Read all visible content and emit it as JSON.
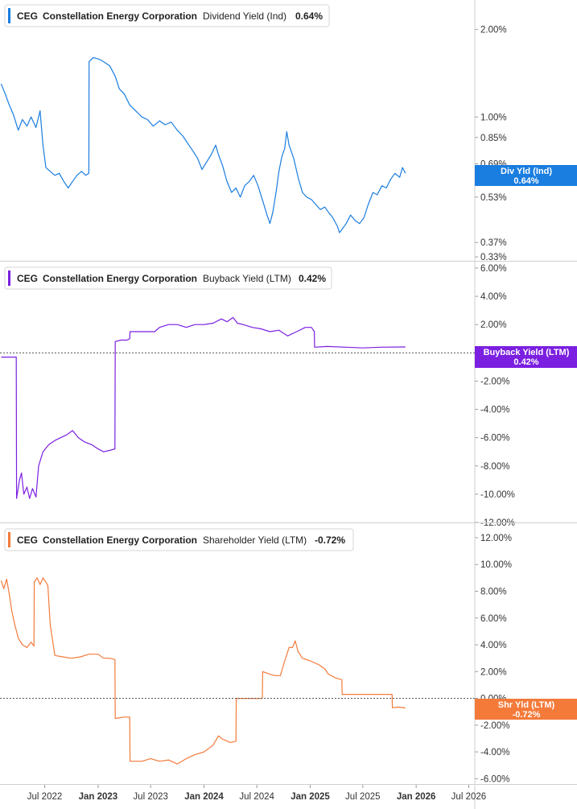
{
  "chart_data": [
    {
      "type": "line",
      "ticker": "CEG",
      "company": "Constellation Energy Corporation",
      "metric": "Dividend Yield (Ind)",
      "current_value": "0.64%",
      "tag_label": "Div Yld (Ind)",
      "tag_value": "0.64%",
      "color": "#1a7de0",
      "scale": "log",
      "ylim": [
        0.32,
        2.4
      ],
      "yticks": [
        {
          "v": 2.0,
          "label": "2.00%"
        },
        {
          "v": 1.0,
          "label": "1.00%"
        },
        {
          "v": 0.85,
          "label": "0.85%"
        },
        {
          "v": 0.69,
          "label": "0.69%"
        },
        {
          "v": 0.53,
          "label": "0.53%"
        },
        {
          "v": 0.37,
          "label": "0.37%"
        },
        {
          "v": 0.33,
          "label": "0.33%"
        }
      ],
      "points": [
        [
          "2022-02-01",
          1.3
        ],
        [
          "2022-02-15",
          1.2
        ],
        [
          "2022-03-01",
          1.1
        ],
        [
          "2022-03-15",
          1.02
        ],
        [
          "2022-04-01",
          0.9
        ],
        [
          "2022-04-15",
          0.98
        ],
        [
          "2022-05-01",
          0.93
        ],
        [
          "2022-05-15",
          1.0
        ],
        [
          "2022-06-01",
          0.92
        ],
        [
          "2022-06-15",
          1.05
        ],
        [
          "2022-06-25",
          0.8
        ],
        [
          "2022-07-05",
          0.67
        ],
        [
          "2022-07-20",
          0.65
        ],
        [
          "2022-08-05",
          0.63
        ],
        [
          "2022-08-20",
          0.64
        ],
        [
          "2022-09-05",
          0.6
        ],
        [
          "2022-09-20",
          0.57
        ],
        [
          "2022-10-05",
          0.6
        ],
        [
          "2022-10-20",
          0.63
        ],
        [
          "2022-11-05",
          0.65
        ],
        [
          "2022-11-20",
          0.63
        ],
        [
          "2022-11-30",
          0.64
        ],
        [
          "2022-12-01",
          1.55
        ],
        [
          "2022-12-15",
          1.6
        ],
        [
          "2023-01-05",
          1.58
        ],
        [
          "2023-01-20",
          1.55
        ],
        [
          "2023-02-10",
          1.5
        ],
        [
          "2023-03-01",
          1.38
        ],
        [
          "2023-03-15",
          1.25
        ],
        [
          "2023-04-01",
          1.2
        ],
        [
          "2023-04-20",
          1.1
        ],
        [
          "2023-05-10",
          1.05
        ],
        [
          "2023-06-01",
          1.0
        ],
        [
          "2023-06-20",
          0.98
        ],
        [
          "2023-07-10",
          0.93
        ],
        [
          "2023-08-01",
          0.97
        ],
        [
          "2023-08-20",
          0.94
        ],
        [
          "2023-09-10",
          0.96
        ],
        [
          "2023-10-01",
          0.9
        ],
        [
          "2023-10-20",
          0.86
        ],
        [
          "2023-11-10",
          0.8
        ],
        [
          "2023-11-25",
          0.76
        ],
        [
          "2023-12-10",
          0.72
        ],
        [
          "2023-12-25",
          0.66
        ],
        [
          "2024-01-10",
          0.7
        ],
        [
          "2024-01-25",
          0.74
        ],
        [
          "2024-02-10",
          0.8
        ],
        [
          "2024-02-20",
          0.74
        ],
        [
          "2024-03-05",
          0.68
        ],
        [
          "2024-03-20",
          0.6
        ],
        [
          "2024-04-05",
          0.55
        ],
        [
          "2024-04-20",
          0.57
        ],
        [
          "2024-05-05",
          0.53
        ],
        [
          "2024-05-20",
          0.58
        ],
        [
          "2024-06-05",
          0.6
        ],
        [
          "2024-06-20",
          0.63
        ],
        [
          "2024-07-05",
          0.58
        ],
        [
          "2024-07-20",
          0.52
        ],
        [
          "2024-08-05",
          0.46
        ],
        [
          "2024-08-15",
          0.43
        ],
        [
          "2024-08-25",
          0.47
        ],
        [
          "2024-09-05",
          0.55
        ],
        [
          "2024-09-15",
          0.65
        ],
        [
          "2024-09-25",
          0.73
        ],
        [
          "2024-10-05",
          0.78
        ],
        [
          "2024-10-12",
          0.89
        ],
        [
          "2024-10-20",
          0.8
        ],
        [
          "2024-11-05",
          0.72
        ],
        [
          "2024-11-20",
          0.62
        ],
        [
          "2024-12-05",
          0.55
        ],
        [
          "2024-12-20",
          0.53
        ],
        [
          "2025-01-05",
          0.52
        ],
        [
          "2025-01-20",
          0.5
        ],
        [
          "2025-02-05",
          0.48
        ],
        [
          "2025-02-20",
          0.49
        ],
        [
          "2025-03-05",
          0.47
        ],
        [
          "2025-03-20",
          0.45
        ],
        [
          "2025-04-05",
          0.42
        ],
        [
          "2025-04-12",
          0.4
        ],
        [
          "2025-04-20",
          0.41
        ],
        [
          "2025-05-05",
          0.43
        ],
        [
          "2025-05-20",
          0.46
        ],
        [
          "2025-06-05",
          0.44
        ],
        [
          "2025-06-20",
          0.43
        ],
        [
          "2025-07-05",
          0.45
        ],
        [
          "2025-07-20",
          0.5
        ],
        [
          "2025-08-05",
          0.55
        ],
        [
          "2025-08-20",
          0.54
        ],
        [
          "2025-09-05",
          0.58
        ],
        [
          "2025-09-20",
          0.57
        ],
        [
          "2025-10-05",
          0.61
        ],
        [
          "2025-10-20",
          0.64
        ],
        [
          "2025-11-05",
          0.62
        ],
        [
          "2025-11-15",
          0.67
        ],
        [
          "2025-11-25",
          0.64
        ]
      ]
    },
    {
      "type": "line",
      "ticker": "CEG",
      "company": "Constellation Energy Corporation",
      "metric": "Buyback Yield (LTM)",
      "current_value": "0.42%",
      "tag_label": "Buyback Yield (LTM)",
      "tag_value": "0.42%",
      "color": "#7b1fe0",
      "scale": "linear",
      "ylim": [
        -12.0,
        6.0
      ],
      "zero_line": true,
      "yticks": [
        {
          "v": 6,
          "label": "6.00%"
        },
        {
          "v": 4,
          "label": "4.00%"
        },
        {
          "v": 2,
          "label": "2.00%"
        },
        {
          "v": 0,
          "label": "0.00%"
        },
        {
          "v": -2,
          "label": "-2.00%"
        },
        {
          "v": -4,
          "label": "-4.00%"
        },
        {
          "v": -6,
          "label": "-6.00%"
        },
        {
          "v": -8,
          "label": "-8.00%"
        },
        {
          "v": -10,
          "label": "-10.00%"
        },
        {
          "v": -12,
          "label": "-12.00%"
        }
      ],
      "points": [
        [
          "2022-02-01",
          -0.3
        ],
        [
          "2022-03-25",
          -0.3
        ],
        [
          "2022-03-26",
          -10.3
        ],
        [
          "2022-04-05",
          -9.0
        ],
        [
          "2022-04-12",
          -8.5
        ],
        [
          "2022-04-20",
          -10.0
        ],
        [
          "2022-05-01",
          -9.5
        ],
        [
          "2022-05-10",
          -10.3
        ],
        [
          "2022-05-20",
          -9.6
        ],
        [
          "2022-06-01",
          -10.2
        ],
        [
          "2022-06-10",
          -8.0
        ],
        [
          "2022-06-25",
          -7.0
        ],
        [
          "2022-07-15",
          -6.5
        ],
        [
          "2022-08-05",
          -6.2
        ],
        [
          "2022-08-25",
          -6.0
        ],
        [
          "2022-09-15",
          -5.8
        ],
        [
          "2022-10-05",
          -5.5
        ],
        [
          "2022-10-25",
          -6.0
        ],
        [
          "2022-11-15",
          -6.3
        ],
        [
          "2022-12-10",
          -6.5
        ],
        [
          "2023-01-01",
          -6.8
        ],
        [
          "2023-01-20",
          -7.0
        ],
        [
          "2023-02-10",
          -6.9
        ],
        [
          "2023-02-28",
          -6.8
        ],
        [
          "2023-03-01",
          0.8
        ],
        [
          "2023-03-20",
          0.9
        ],
        [
          "2023-04-10",
          0.9
        ],
        [
          "2023-04-20",
          1.0
        ],
        [
          "2023-04-21",
          1.5
        ],
        [
          "2023-06-01",
          1.5
        ],
        [
          "2023-07-15",
          1.5
        ],
        [
          "2023-08-01",
          1.8
        ],
        [
          "2023-09-01",
          2.0
        ],
        [
          "2023-10-01",
          2.0
        ],
        [
          "2023-11-01",
          1.8
        ],
        [
          "2023-12-01",
          2.0
        ],
        [
          "2024-01-01",
          2.0
        ],
        [
          "2024-02-01",
          2.1
        ],
        [
          "2024-03-01",
          2.4
        ],
        [
          "2024-03-20",
          2.2
        ],
        [
          "2024-04-10",
          2.5
        ],
        [
          "2024-04-25",
          2.1
        ],
        [
          "2024-05-15",
          2.0
        ],
        [
          "2024-06-15",
          1.8
        ],
        [
          "2024-07-15",
          1.7
        ],
        [
          "2024-08-15",
          1.5
        ],
        [
          "2024-09-15",
          1.6
        ],
        [
          "2024-10-15",
          1.2
        ],
        [
          "2024-11-15",
          1.5
        ],
        [
          "2024-12-15",
          1.8
        ],
        [
          "2025-01-05",
          1.8
        ],
        [
          "2025-01-15",
          1.5
        ],
        [
          "2025-01-16",
          0.4
        ],
        [
          "2025-03-01",
          0.45
        ],
        [
          "2025-05-01",
          0.4
        ],
        [
          "2025-07-01",
          0.35
        ],
        [
          "2025-09-01",
          0.4
        ],
        [
          "2025-11-25",
          0.42
        ]
      ]
    },
    {
      "type": "line",
      "ticker": "CEG",
      "company": "Constellation Energy Corporation",
      "metric": "Shareholder Yield (LTM)",
      "current_value": "-0.72%",
      "tag_label": "Shr Yld (LTM)",
      "tag_value": "-0.72%",
      "color": "#f47a3a",
      "scale": "linear",
      "ylim": [
        -6.4,
        12.6
      ],
      "zero_line": true,
      "yticks": [
        {
          "v": 12,
          "label": "12.00%"
        },
        {
          "v": 10,
          "label": "10.00%"
        },
        {
          "v": 8,
          "label": "8.00%"
        },
        {
          "v": 6,
          "label": "6.00%"
        },
        {
          "v": 4,
          "label": "4.00%"
        },
        {
          "v": 2,
          "label": "2.00%"
        },
        {
          "v": 0,
          "label": "0.00%"
        },
        {
          "v": -2,
          "label": "-2.00%"
        },
        {
          "v": -4,
          "label": "-4.00%"
        },
        {
          "v": -6,
          "label": "-6.00%"
        }
      ],
      "points": [
        [
          "2022-02-01",
          8.8
        ],
        [
          "2022-02-10",
          8.2
        ],
        [
          "2022-02-20",
          8.9
        ],
        [
          "2022-03-01",
          7.8
        ],
        [
          "2022-03-10",
          6.5
        ],
        [
          "2022-03-20",
          5.5
        ],
        [
          "2022-04-01",
          4.5
        ],
        [
          "2022-04-15",
          4.0
        ],
        [
          "2022-05-01",
          3.8
        ],
        [
          "2022-05-15",
          4.2
        ],
        [
          "2022-05-25",
          3.9
        ],
        [
          "2022-05-26",
          8.7
        ],
        [
          "2022-06-05",
          9.0
        ],
        [
          "2022-06-15",
          8.5
        ],
        [
          "2022-06-25",
          9.0
        ],
        [
          "2022-07-05",
          8.7
        ],
        [
          "2022-07-12",
          8.4
        ],
        [
          "2022-07-20",
          5.5
        ],
        [
          "2022-08-05",
          3.2
        ],
        [
          "2022-09-01",
          3.1
        ],
        [
          "2022-10-01",
          3.0
        ],
        [
          "2022-11-01",
          3.1
        ],
        [
          "2022-12-01",
          3.3
        ],
        [
          "2023-01-01",
          3.3
        ],
        [
          "2023-01-20",
          3.0
        ],
        [
          "2023-02-10",
          3.0
        ],
        [
          "2023-02-28",
          2.9
        ],
        [
          "2023-03-01",
          -1.5
        ],
        [
          "2023-04-01",
          -1.4
        ],
        [
          "2023-04-20",
          -1.4
        ],
        [
          "2023-04-21",
          -4.7
        ],
        [
          "2023-06-01",
          -4.7
        ],
        [
          "2023-07-01",
          -4.5
        ],
        [
          "2023-08-01",
          -4.7
        ],
        [
          "2023-09-01",
          -4.6
        ],
        [
          "2023-10-01",
          -4.9
        ],
        [
          "2023-11-01",
          -4.5
        ],
        [
          "2023-12-01",
          -4.2
        ],
        [
          "2024-01-01",
          -4.0
        ],
        [
          "2024-02-01",
          -3.5
        ],
        [
          "2024-02-20",
          -2.8
        ],
        [
          "2024-03-01",
          -3.0
        ],
        [
          "2024-04-01",
          -3.3
        ],
        [
          "2024-04-20",
          -3.2
        ],
        [
          "2024-04-21",
          0.0
        ],
        [
          "2024-06-01",
          0.0
        ],
        [
          "2024-07-01",
          0.0
        ],
        [
          "2024-07-20",
          0.0
        ],
        [
          "2024-07-21",
          2.0
        ],
        [
          "2024-08-15",
          1.8
        ],
        [
          "2024-09-01",
          1.7
        ],
        [
          "2024-09-20",
          1.7
        ],
        [
          "2024-10-01",
          2.5
        ],
        [
          "2024-10-20",
          3.8
        ],
        [
          "2024-11-01",
          3.8
        ],
        [
          "2024-11-10",
          4.3
        ],
        [
          "2024-11-20",
          3.5
        ],
        [
          "2024-12-05",
          3.0
        ],
        [
          "2025-01-01",
          2.8
        ],
        [
          "2025-02-01",
          2.5
        ],
        [
          "2025-02-20",
          2.2
        ],
        [
          "2025-03-05",
          1.8
        ],
        [
          "2025-04-01",
          1.5
        ],
        [
          "2025-04-20",
          1.4
        ],
        [
          "2025-04-21",
          0.3
        ],
        [
          "2025-06-01",
          0.3
        ],
        [
          "2025-08-01",
          0.3
        ],
        [
          "2025-10-01",
          0.3
        ],
        [
          "2025-10-10",
          0.3
        ],
        [
          "2025-10-11",
          -0.7
        ],
        [
          "2025-11-01",
          -0.65
        ],
        [
          "2025-11-25",
          -0.72
        ]
      ]
    }
  ],
  "x_axis": {
    "start": "2022-01-28",
    "end": "2026-07-22",
    "ticks": [
      {
        "date": "2022-07-01",
        "label": "Jul 2022",
        "bold": false
      },
      {
        "date": "2023-01-01",
        "label": "Jan 2023",
        "bold": true
      },
      {
        "date": "2023-07-01",
        "label": "Jul 2023",
        "bold": false
      },
      {
        "date": "2024-01-01",
        "label": "Jan 2024",
        "bold": true
      },
      {
        "date": "2024-07-01",
        "label": "Jul 2024",
        "bold": false
      },
      {
        "date": "2025-01-01",
        "label": "Jan 2025",
        "bold": true
      },
      {
        "date": "2025-07-01",
        "label": "Jul 2025",
        "bold": false
      },
      {
        "date": "2026-01-01",
        "label": "Jan 2026",
        "bold": true
      },
      {
        "date": "2026-07-01",
        "label": "Jul 2026",
        "bold": false
      }
    ]
  }
}
